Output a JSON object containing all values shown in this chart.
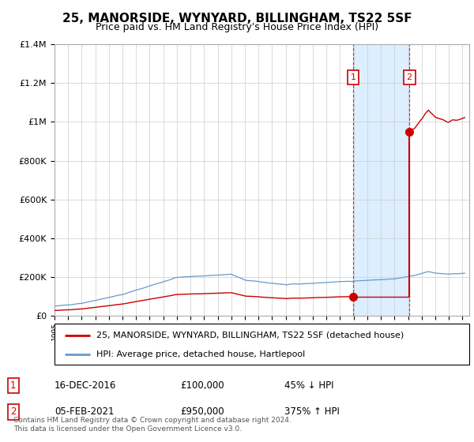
{
  "title": "25, MANORSIDE, WYNYARD, BILLINGHAM, TS22 5SF",
  "subtitle": "Price paid vs. HM Land Registry's House Price Index (HPI)",
  "title_fontsize": 11,
  "subtitle_fontsize": 9,
  "background_color": "#ffffff",
  "plot_bg_color": "#ffffff",
  "grid_color": "#cccccc",
  "sale1_date_label": "16-DEC-2016",
  "sale1_price_label": "£100,000",
  "sale1_hpi_label": "45% ↓ HPI",
  "sale2_date_label": "05-FEB-2021",
  "sale2_price_label": "£950,000",
  "sale2_hpi_label": "375% ↑ HPI",
  "legend_label1": "25, MANORSIDE, WYNYARD, BILLINGHAM, TS22 5SF (detached house)",
  "legend_label2": "HPI: Average price, detached house, Hartlepool",
  "footer": "Contains HM Land Registry data © Crown copyright and database right 2024.\nThis data is licensed under the Open Government Licence v3.0.",
  "sale1_x": 2016.96,
  "sale1_y": 100000,
  "sale2_x": 2021.09,
  "sale2_y": 950000,
  "ylim": [
    0,
    1400000
  ],
  "xlim": [
    1995,
    2025.5
  ],
  "red_line_color": "#cc0000",
  "blue_line_color": "#6699cc",
  "shade_color": "#ddeeff",
  "marker_color": "#cc0000",
  "vline_color": "#cc0000"
}
